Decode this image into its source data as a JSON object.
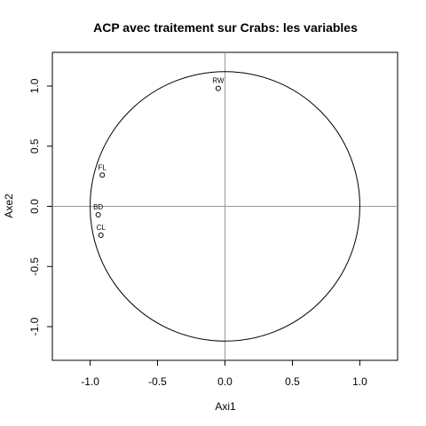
{
  "chart_data": {
    "type": "scatter",
    "title": "ACP avec traitement sur Crabs: les variables",
    "xlabel": "Axi1",
    "ylabel": "Axe2",
    "xlim": [
      -1.28,
      1.28
    ],
    "ylim": [
      -1.28,
      1.28
    ],
    "xticks": [
      -1.0,
      -0.5,
      0.0,
      0.5,
      1.0
    ],
    "yticks": [
      -1.0,
      -0.5,
      0.0,
      0.5,
      1.0
    ],
    "xtick_labels": [
      "-1.0",
      "-0.5",
      "0.0",
      "0.5",
      "1.0"
    ],
    "ytick_labels": [
      "-1.0",
      "-0.5",
      "0.0",
      "0.5",
      "1.0"
    ],
    "reference_lines": {
      "x": 0,
      "y": 0,
      "color": "#999999"
    },
    "circle": {
      "cx": 0,
      "cy": 0,
      "rx": 1.0,
      "ry": 1.12
    },
    "points": [
      {
        "label": "RW",
        "x": -0.05,
        "y": 0.98
      },
      {
        "label": "FL",
        "x": -0.91,
        "y": 0.26
      },
      {
        "label": "BD",
        "x": -0.94,
        "y": -0.07
      },
      {
        "label": "CL",
        "x": -0.92,
        "y": -0.24
      }
    ],
    "grid": false,
    "legend": "none"
  }
}
